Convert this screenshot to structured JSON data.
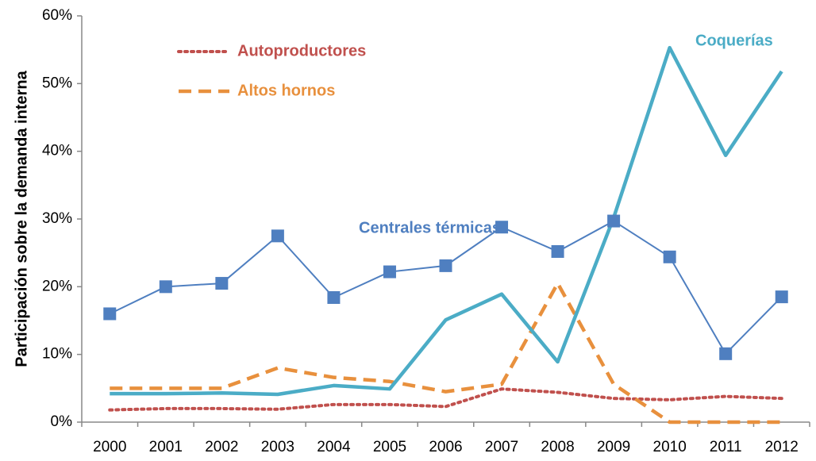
{
  "chart_data": {
    "type": "line",
    "y_axis_label": "Participación sobre la demanda interna",
    "categories": [
      "2000",
      "2001",
      "2002",
      "2003",
      "2004",
      "2005",
      "2006",
      "2007",
      "2008",
      "2009",
      "2010",
      "2011",
      "2012"
    ],
    "ylim": [
      0,
      60
    ],
    "yticks": [
      {
        "value": 0,
        "label": "0%"
      },
      {
        "value": 10,
        "label": "10%"
      },
      {
        "value": 20,
        "label": "20%"
      },
      {
        "value": 30,
        "label": "30%"
      },
      {
        "value": 40,
        "label": "40%"
      },
      {
        "value": 50,
        "label": "50%"
      },
      {
        "value": 60,
        "label": "60%"
      }
    ],
    "series": [
      {
        "name": "Autoproductores",
        "color": "#c0504d",
        "style": "dotted",
        "values": [
          1.8,
          2,
          2,
          1.9,
          2.6,
          2.6,
          2.3,
          4.9,
          4.4,
          3.5,
          3.3,
          3.8,
          3.5
        ]
      },
      {
        "name": "Altos hornos",
        "color": "#e8903d",
        "style": "dashed",
        "values": [
          5,
          5,
          5,
          8,
          6.6,
          6,
          4.5,
          5.6,
          20.5,
          5.6,
          0,
          0,
          0
        ]
      },
      {
        "name": "Coquerías",
        "color": "#4bacc6",
        "style": "solid",
        "values": [
          4.2,
          4.2,
          4.3,
          4.1,
          5.4,
          4.9,
          15.1,
          18.9,
          8.9,
          30.2,
          55.3,
          39.4,
          51.8
        ]
      },
      {
        "name": "Centrales térmicas",
        "color": "#4f7fc0",
        "style": "solid",
        "marker": "square",
        "values": [
          16,
          20,
          20.5,
          27.5,
          18.4,
          22.2,
          23.1,
          28.8,
          25.2,
          29.7,
          24.4,
          10.1,
          18.5
        ]
      }
    ]
  }
}
